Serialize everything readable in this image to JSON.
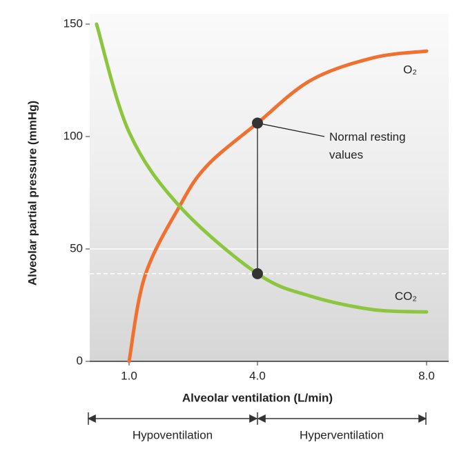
{
  "chart_data": {
    "type": "line",
    "x_label": "Alveolar ventilation (L/min)",
    "y_label": "Alveolar partial pressure (mmHg)",
    "xlim": [
      0.1,
      8.5
    ],
    "xticks": [
      {
        "value": 1,
        "label": "1.0"
      },
      {
        "value": 4,
        "label": "4.0"
      },
      {
        "value": 8,
        "label": "8.0"
      }
    ],
    "ylim": [
      0,
      150
    ],
    "yticks": [
      0,
      50,
      100,
      150
    ],
    "series": [
      {
        "name": "O₂",
        "color": "#f07030",
        "x": [
          1,
          1.37,
          2.18,
          2.82,
          4,
          5.26,
          6.73,
          8
        ],
        "values": [
          0,
          38,
          69,
          87,
          106,
          125,
          135,
          138
        ]
      },
      {
        "name": "CO₂",
        "color": "#8cc63f",
        "x": [
          0.24,
          1,
          2.18,
          4,
          5.26,
          6.73,
          8
        ],
        "values": [
          150,
          102,
          69,
          39,
          29,
          23,
          22
        ]
      }
    ],
    "annotation": "Normal resting values",
    "regions": [
      "Hypoventilation",
      "Hyperventilation"
    ]
  }
}
